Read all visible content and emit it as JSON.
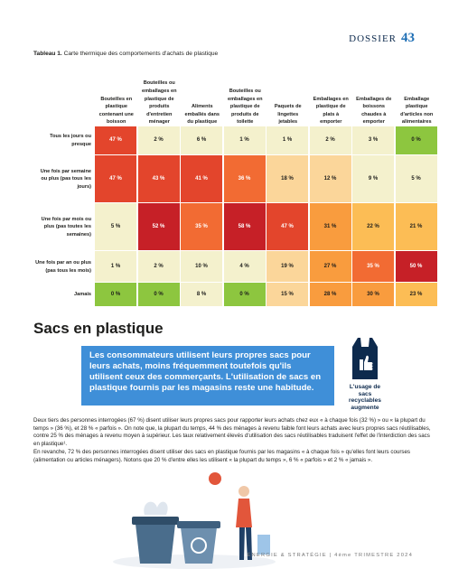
{
  "header": {
    "section": "DOSSIER",
    "page": "43"
  },
  "table": {
    "caption_label": "Tableau 1.",
    "caption": "Carte thermique des comportements d'achats de plastique",
    "columns": [
      "Bouteilles en plastique contenant une boisson",
      "Bouteilles ou emballages en plastique de produits d'entretien ménager",
      "Aliments emballés dans du plastique",
      "Bouteilles ou emballages en plastique de produits de toilette",
      "Paquets de lingettes jetables",
      "Emballages en plastique de plats à emporter",
      "Emballages de boissons chaudes à emporter",
      "Emballage plastique d'articles non alimentaires"
    ],
    "rows": [
      {
        "label": "Tous les jours ou presque",
        "cells": [
          "47 %",
          "2 %",
          "6 %",
          "1 %",
          "1 %",
          "2 %",
          "3 %",
          "0 %"
        ]
      },
      {
        "label": "Une fois par semaine ou plus (pas tous les jours)",
        "cells": [
          "47 %",
          "43 %",
          "41 %",
          "36 %",
          "18 %",
          "12 %",
          "9 %",
          "5 %"
        ]
      },
      {
        "label": "Une fois par mois ou plus (pas toutes les semaines)",
        "cells": [
          "5 %",
          "52 %",
          "35 %",
          "58 %",
          "47 %",
          "31 %",
          "22 %",
          "21 %"
        ]
      },
      {
        "label": "Une fois par an ou plus (pas tous les mois)",
        "cells": [
          "1 %",
          "2 %",
          "10 %",
          "4 %",
          "19 %",
          "27 %",
          "35 %",
          "50 %"
        ]
      },
      {
        "label": "Jamais",
        "cells": [
          "0 %",
          "0 %",
          "8 %",
          "0 %",
          "15 %",
          "28 %",
          "30 %",
          "23 %"
        ]
      }
    ]
  },
  "section": {
    "title": "Sacs en plastique",
    "callout": "Les consommateurs utilisent leurs propres sacs pour leurs achats, moins fréquemment toutefois qu'ils utilisent ceux des commerçants. L'utilisation de sacs en plastique fournis par les magasins reste une habitude.",
    "icon_caption": "L'usage de sacs recyclables augmente",
    "paragraphs": [
      "Deux tiers des personnes interrogées (67 %) disent utiliser leurs propres sacs pour rapporter leurs achats chez eux « à chaque fois (32 %) » ou « la plupart du temps » (36 %), et 28 % « parfois ». On note que, la plupart du temps, 44 % des ménages à revenu faible font leurs achats avec leurs propres sacs réutilisables, contre 25 % des ménages à revenu moyen à supérieur. Les taux relativement élevés d'utilisation des sacs réutilisables traduisent l'effet de l'interdiction des sacs en plastique¹.",
      "En revanche, 72 % des personnes interrogées disent utiliser des sacs en plastique fournis par les magasins « à chaque fois » qu'elles font leurs courses (alimentation ou articles ménagers). Notons que 20 % d'entre elles les utilisent « la plupart du temps », 6 % « parfois » et 2 % « jamais »."
    ]
  },
  "footer": "ÉNERGIE & STRATÉGIE | 4ème TRIMESTRE 2024"
}
